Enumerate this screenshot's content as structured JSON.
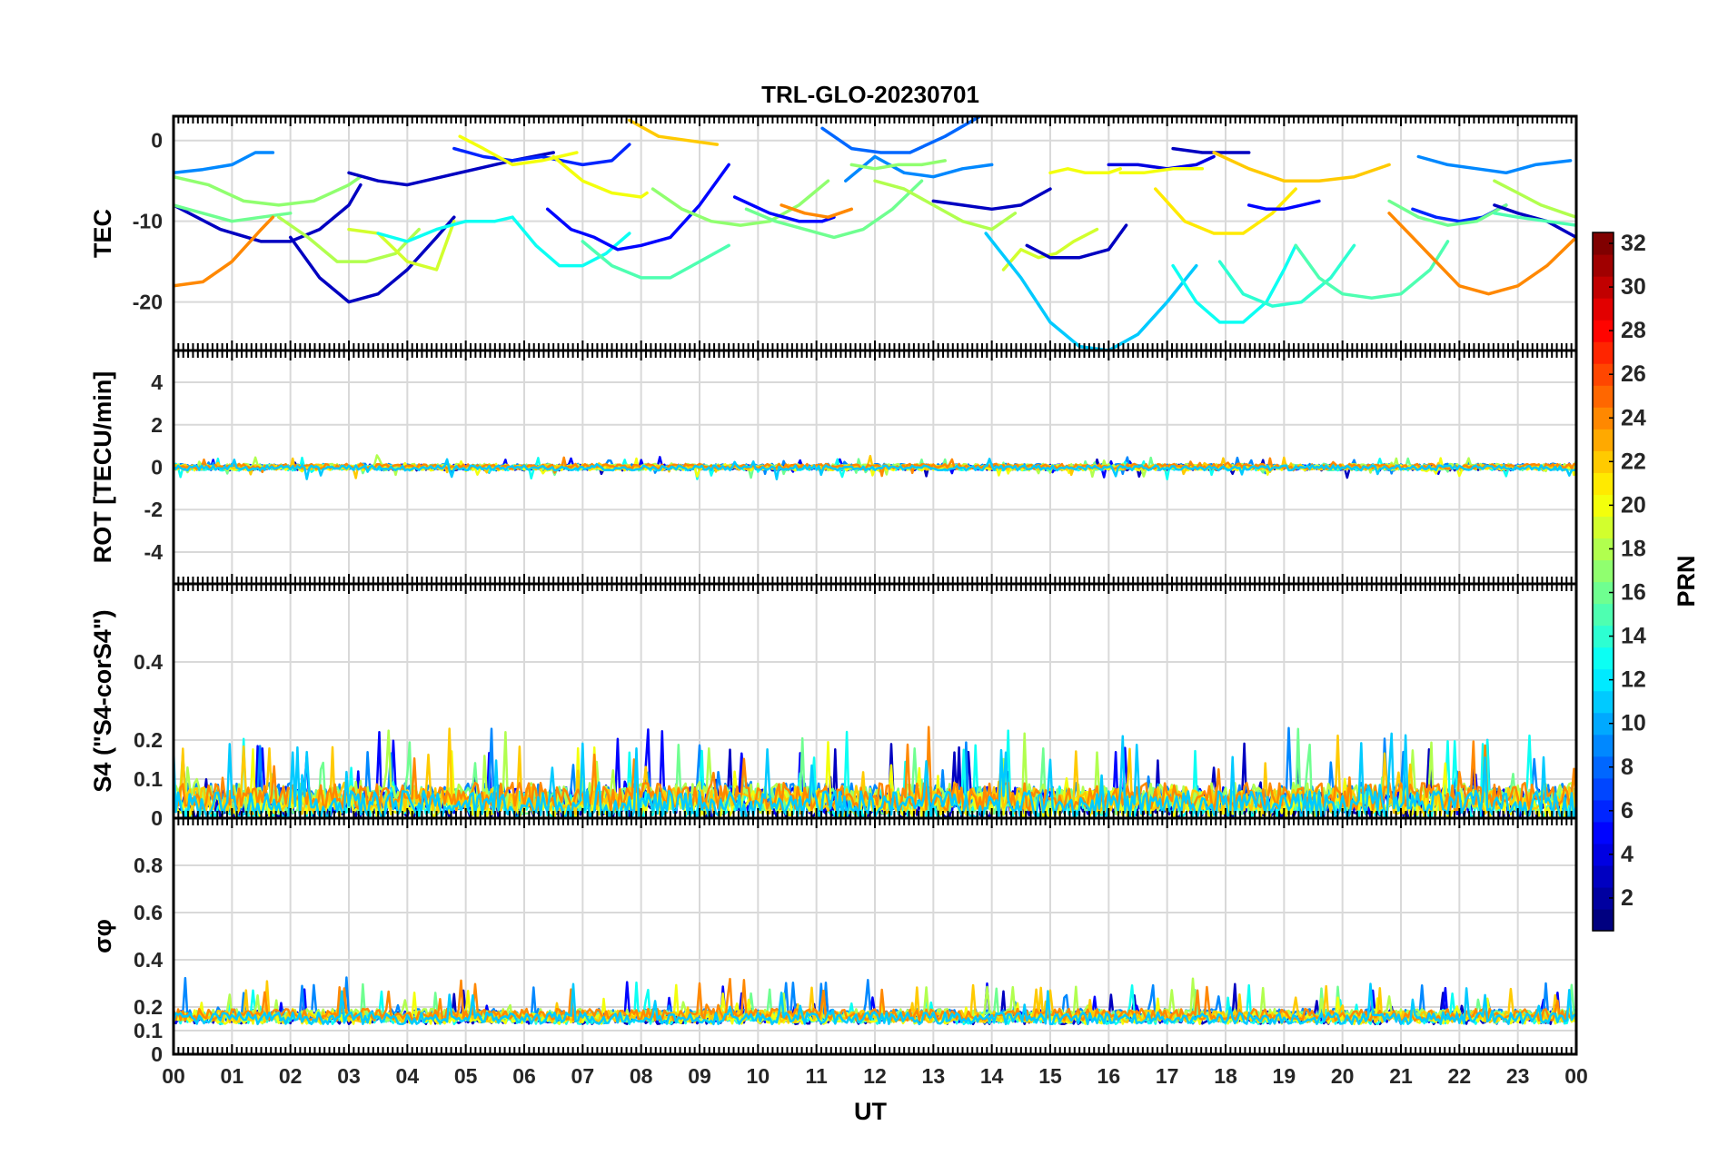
{
  "chart_data": {
    "type": "line",
    "title": "TRL-GLO-20230701",
    "xlabel": "UT",
    "x_ticks": [
      "00",
      "01",
      "02",
      "03",
      "04",
      "05",
      "06",
      "07",
      "08",
      "09",
      "10",
      "11",
      "12",
      "13",
      "14",
      "15",
      "16",
      "17",
      "18",
      "19",
      "20",
      "21",
      "22",
      "23",
      "00"
    ],
    "xlim": [
      0,
      24
    ],
    "colorbar": {
      "label": "PRN",
      "range": [
        1,
        32
      ],
      "ticks": [
        "2",
        "4",
        "6",
        "8",
        "10",
        "12",
        "14",
        "16",
        "18",
        "20",
        "22",
        "24",
        "26",
        "28",
        "30",
        "32"
      ],
      "colormap": "jet"
    },
    "panels": [
      {
        "id": "tec",
        "ylabel": "TEC",
        "ylim": [
          -26,
          3
        ],
        "ytick_values": [
          0,
          -10,
          -20
        ],
        "ytick_labels": [
          "0",
          "-10",
          "-20"
        ],
        "series": [
          {
            "prn": 9,
            "x": [
              0,
              0.5,
              1,
              1.4,
              1.7
            ],
            "y": [
              -4,
              -3.6,
              -3,
              -1.5,
              -1.5
            ]
          },
          {
            "prn": 3,
            "x": [
              0,
              0.8,
              1.5,
              2,
              2.5,
              3,
              3.2
            ],
            "y": [
              -8,
              -11,
              -12.5,
              -12.5,
              -11,
              -8,
              -5.5
            ]
          },
          {
            "prn": 17,
            "x": [
              0,
              0.6,
              1.2,
              1.8,
              2.4,
              3,
              3.2
            ],
            "y": [
              -4.5,
              -5.5,
              -7.5,
              -8,
              -7.5,
              -5.5,
              -4.5
            ]
          },
          {
            "prn": 16,
            "x": [
              0,
              0.5,
              1,
              1.5,
              2
            ],
            "y": [
              -8,
              -9,
              -10,
              -9.5,
              -9
            ]
          },
          {
            "prn": 24,
            "x": [
              0,
              0.5,
              1,
              1.5,
              1.7
            ],
            "y": [
              -18,
              -17.5,
              -15,
              -11,
              -9.5
            ]
          },
          {
            "prn": 3,
            "x": [
              2,
              2.5,
              3,
              3.5,
              4,
              4.5,
              4.8
            ],
            "y": [
              -12,
              -17,
              -20,
              -19,
              -16,
              -12,
              -9.5
            ]
          },
          {
            "prn": 18,
            "x": [
              1.8,
              2.3,
              2.8,
              3.3,
              3.8,
              4.2
            ],
            "y": [
              -9.5,
              -12,
              -15,
              -15,
              -14,
              -11
            ]
          },
          {
            "prn": 3,
            "x": [
              3,
              3.5,
              4,
              4.6,
              5.2,
              5.8,
              6.5
            ],
            "y": [
              -4,
              -5,
              -5.5,
              -4.5,
              -3.5,
              -2.5,
              -1.5
            ]
          },
          {
            "prn": 19,
            "x": [
              3,
              3.5,
              4,
              4.5,
              4.8
            ],
            "y": [
              -11,
              -11.5,
              -15,
              -16,
              -10
            ]
          },
          {
            "prn": 13,
            "x": [
              3.5,
              4,
              4.5,
              5,
              5.5,
              5.8
            ],
            "y": [
              -11.5,
              -12.5,
              -11,
              -10,
              -10,
              -9.5
            ]
          },
          {
            "prn": 6,
            "x": [
              4.8,
              5.3,
              5.8,
              6.3,
              7,
              7.5,
              7.8
            ],
            "y": [
              -1,
              -2,
              -2.5,
              -2,
              -3,
              -2.5,
              -0.5
            ]
          },
          {
            "prn": 20,
            "x": [
              4.9,
              5.3,
              5.8,
              6.3,
              6.9
            ],
            "y": [
              0.5,
              -1,
              -3,
              -2.5,
              -1.5
            ]
          },
          {
            "prn": 13,
            "x": [
              5.8,
              6.2,
              6.6,
              7,
              7.4,
              7.8
            ],
            "y": [
              -9.5,
              -13,
              -15.5,
              -15.5,
              -14,
              -11.5
            ]
          },
          {
            "prn": 5,
            "x": [
              6.4,
              6.8,
              7.2,
              7.6,
              8,
              8.5,
              9,
              9.5
            ],
            "y": [
              -8.5,
              -11,
              -12,
              -13.5,
              -13,
              -12,
              -8,
              -3
            ]
          },
          {
            "prn": 20,
            "x": [
              6.5,
              7,
              7.5,
              8,
              8.1
            ],
            "y": [
              -2,
              -5,
              -6.5,
              -7,
              -6.5
            ]
          },
          {
            "prn": 22,
            "x": [
              7.8,
              8.3,
              8.8,
              9.3
            ],
            "y": [
              2.5,
              0.5,
              0,
              -0.5
            ]
          },
          {
            "prn": 15,
            "x": [
              7,
              7.5,
              8,
              8.5,
              9,
              9.5
            ],
            "y": [
              -12.5,
              -15.5,
              -17,
              -17,
              -15,
              -13
            ]
          },
          {
            "prn": 17,
            "x": [
              8.2,
              8.7,
              9.2,
              9.7,
              10.2,
              10.7,
              11.2
            ],
            "y": [
              -6,
              -8.5,
              -10,
              -10.5,
              -10,
              -8,
              -5
            ]
          },
          {
            "prn": 5,
            "x": [
              9.6,
              10.2,
              10.7,
              11.1,
              11.3
            ],
            "y": [
              -7,
              -9,
              -10,
              -10,
              -9.5
            ]
          },
          {
            "prn": 24,
            "x": [
              10.4,
              10.8,
              11.2,
              11.6
            ],
            "y": [
              -8,
              -9,
              -9.5,
              -8.5
            ]
          },
          {
            "prn": 16,
            "x": [
              9.8,
              10.3,
              10.8,
              11.3,
              11.8,
              12.3,
              12.8
            ],
            "y": [
              -8.5,
              -10,
              -11,
              -12,
              -11,
              -8.5,
              -5
            ]
          },
          {
            "prn": 8,
            "x": [
              11.1,
              11.6,
              12.1,
              12.6,
              13.2,
              13.8
            ],
            "y": [
              1.5,
              -1,
              -1.5,
              -1.5,
              0.5,
              3
            ]
          },
          {
            "prn": 9,
            "x": [
              11.5,
              12,
              12.5,
              13,
              13.5,
              14
            ],
            "y": [
              -5,
              -2,
              -4,
              -4.5,
              -3.5,
              -3
            ]
          },
          {
            "prn": 17,
            "x": [
              11.6,
              12,
              12.4,
              12.8,
              13.2
            ],
            "y": [
              -3,
              -3.5,
              -3,
              -3,
              -2.5
            ]
          },
          {
            "prn": 18,
            "x": [
              12,
              12.5,
              13,
              13.5,
              14,
              14.4
            ],
            "y": [
              -5,
              -6,
              -8,
              -10,
              -11,
              -9
            ]
          },
          {
            "prn": 3,
            "x": [
              13,
              13.5,
              14,
              14.5,
              15
            ],
            "y": [
              -7.5,
              -8,
              -8.5,
              -8,
              -6
            ]
          },
          {
            "prn": 19,
            "x": [
              14.2,
              14.5,
              14.8,
              15.1,
              15.4,
              15.8
            ],
            "y": [
              -16,
              -13.5,
              -14.5,
              -14,
              -12.5,
              -11
            ]
          },
          {
            "prn": 20,
            "x": [
              15,
              15.3,
              15.6,
              16,
              16.2
            ],
            "y": [
              -4,
              -3.5,
              -4,
              -4,
              -3.5
            ]
          },
          {
            "prn": 3,
            "x": [
              14.6,
              15,
              15.5,
              16,
              16.3
            ],
            "y": [
              -13,
              -14.5,
              -14.5,
              -13.5,
              -10.5
            ]
          },
          {
            "prn": 11,
            "x": [
              13.9,
              14.5,
              15,
              15.5,
              16,
              16.5,
              17,
              17.5
            ],
            "y": [
              -11.5,
              -17,
              -22.5,
              -25.5,
              -26,
              -24,
              -20,
              -15.5
            ]
          },
          {
            "prn": 4,
            "x": [
              16,
              16.5,
              17,
              17.5,
              17.8
            ],
            "y": [
              -3,
              -3,
              -3.5,
              -3,
              -2
            ]
          },
          {
            "prn": 20,
            "x": [
              16.2,
              16.6,
              17.1,
              17.6
            ],
            "y": [
              -4,
              -4,
              -3.5,
              -3.5
            ]
          },
          {
            "prn": 21,
            "x": [
              16.8,
              17.3,
              17.8,
              18.3,
              18.8,
              19.2
            ],
            "y": [
              -6,
              -10,
              -11.5,
              -11.5,
              -9,
              -6
            ]
          },
          {
            "prn": 3,
            "x": [
              17.1,
              17.6,
              18.1,
              18.4
            ],
            "y": [
              -1,
              -1.5,
              -1.5,
              -1.5
            ]
          },
          {
            "prn": 13,
            "x": [
              17.1,
              17.5,
              17.9,
              18.3,
              18.7,
              19,
              19.2
            ],
            "y": [
              -15.5,
              -20,
              -22.5,
              -22.5,
              -20,
              -16,
              -13
            ]
          },
          {
            "prn": 14,
            "x": [
              17.9,
              18.3,
              18.8,
              19.3,
              19.8,
              20.2
            ],
            "y": [
              -15,
              -19,
              -20.5,
              -20,
              -17,
              -13
            ]
          },
          {
            "prn": 5,
            "x": [
              18.4,
              18.7,
              19,
              19.3,
              19.6
            ],
            "y": [
              -8,
              -8.5,
              -8.5,
              -8,
              -7.5
            ]
          },
          {
            "prn": 22,
            "x": [
              17.8,
              18.4,
              19,
              19.6,
              20.2,
              20.8
            ],
            "y": [
              -1.5,
              -3.5,
              -5,
              -5,
              -4.5,
              -3
            ]
          },
          {
            "prn": 15,
            "x": [
              19.2,
              19.6,
              20,
              20.5,
              21,
              21.5,
              21.8
            ],
            "y": [
              -13,
              -17,
              -19,
              -19.5,
              -19,
              -16,
              -12.5
            ]
          },
          {
            "prn": 9,
            "x": [
              21.3,
              21.8,
              22.3,
              22.8,
              23.3,
              23.9
            ],
            "y": [
              -2,
              -3,
              -3.5,
              -4,
              -3,
              -2.5
            ]
          },
          {
            "prn": 24,
            "x": [
              20.8,
              21.2,
              21.6,
              22,
              22.5,
              23,
              23.5,
              24
            ],
            "y": [
              -9,
              -12,
              -15,
              -18,
              -19,
              -18,
              -15.5,
              -12
            ]
          },
          {
            "prn": 6,
            "x": [
              21.2,
              21.6,
              22,
              22.4,
              22.8
            ],
            "y": [
              -8.5,
              -9.5,
              -10,
              -9.5,
              -8
            ]
          },
          {
            "prn": 16,
            "x": [
              20.8,
              21.3,
              21.8,
              22.3,
              22.8
            ],
            "y": [
              -7.5,
              -9.5,
              -10.5,
              -10,
              -8
            ]
          },
          {
            "prn": 18,
            "x": [
              22.6,
              23,
              23.4,
              23.8,
              24
            ],
            "y": [
              -5,
              -6.5,
              -8,
              -9,
              -9.5
            ]
          },
          {
            "prn": 3,
            "x": [
              22.6,
              23,
              23.5,
              24
            ],
            "y": [
              -8,
              -9,
              -10,
              -12
            ]
          },
          {
            "prn": 15,
            "x": [
              22.6,
              23,
              23.5,
              24
            ],
            "y": [
              -9,
              -9.5,
              -10,
              -10.5
            ]
          }
        ]
      },
      {
        "id": "rot",
        "ylabel": "ROT [TECU/min]",
        "ylim": [
          -5.5,
          5.5
        ],
        "ytick_values": [
          4,
          2,
          0,
          -2,
          -4
        ],
        "ytick_labels": [
          "4",
          "2",
          "0",
          "-2",
          "-4"
        ],
        "noise": {
          "center": 0,
          "amplitude": 0.12,
          "spike_max": 0.45
        }
      },
      {
        "id": "s4",
        "ylabel": "S4 (\"S4-corS4\")",
        "ylim": [
          0,
          0.6
        ],
        "ytick_values": [
          0.4,
          0.2,
          0.1,
          0
        ],
        "ytick_labels": [
          "0.4",
          "0.2",
          "0.1",
          "0"
        ],
        "noise": {
          "center": 0.045,
          "amplitude": 0.035,
          "spike_max": 0.21
        }
      },
      {
        "id": "sigma_phi",
        "ylabel": "σφ",
        "ylim": [
          0,
          1
        ],
        "ytick_values": [
          0.8,
          0.6,
          0.4,
          0.2,
          0.1,
          0
        ],
        "ytick_labels": [
          "0.8",
          "0.6",
          "0.4",
          "0.2",
          "0.1",
          "0"
        ],
        "noise": {
          "center": 0.16,
          "amplitude": 0.025,
          "spike_max": 0.3
        }
      }
    ]
  }
}
